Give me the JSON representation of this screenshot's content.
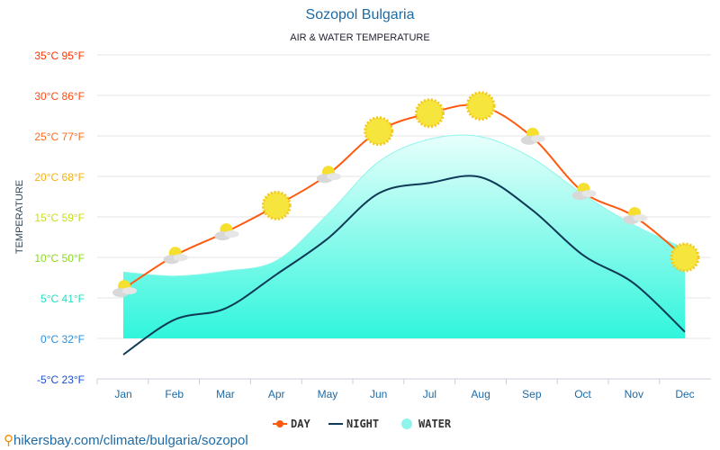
{
  "footer": "hikersbay.com/climate/bulgaria/sozopol",
  "chart_data": {
    "type": "line",
    "title": "Sozopol Bulgaria",
    "subtitle": "AIR & WATER TEMPERATURE",
    "ylabel": "TEMPERATURE",
    "ylim": [
      -5,
      35
    ],
    "grid": true,
    "legend_position": "bottom",
    "categories": [
      "Jan",
      "Feb",
      "Mar",
      "Apr",
      "May",
      "Jun",
      "Jul",
      "Aug",
      "Sep",
      "Oct",
      "Nov",
      "Dec"
    ],
    "yticks": [
      {
        "v": 35,
        "label": "35°C 95°F",
        "color": "#ff3300"
      },
      {
        "v": 30,
        "label": "30°C 86°F",
        "color": "#ff4a10"
      },
      {
        "v": 25,
        "label": "25°C 77°F",
        "color": "#ff6a1a"
      },
      {
        "v": 20,
        "label": "20°C 68°F",
        "color": "#f5b010"
      },
      {
        "v": 15,
        "label": "15°C 59°F",
        "color": "#c8dc20"
      },
      {
        "v": 10,
        "label": "10°C 50°F",
        "color": "#8ad820"
      },
      {
        "v": 5,
        "label": "5°C 41°F",
        "color": "#20e0c0"
      },
      {
        "v": 0,
        "label": "0°C 32°F",
        "color": "#2a90e0"
      },
      {
        "v": -5,
        "label": "-5°C 23°F",
        "color": "#1a50d0"
      }
    ],
    "series": [
      {
        "name": "DAY",
        "color": "#ff5a10",
        "values": [
          6.1,
          10.2,
          13.1,
          16.4,
          20.2,
          25.6,
          27.8,
          28.7,
          24.9,
          18.1,
          15.1,
          10.0
        ],
        "icons": [
          "partly-cloudy",
          "partly-cloudy",
          "partly-cloudy",
          "sunny",
          "partly-cloudy",
          "sunny",
          "sunny",
          "sunny",
          "partly-cloudy",
          "partly-cloudy",
          "partly-cloudy",
          "sunny"
        ]
      },
      {
        "name": "NIGHT",
        "color": "#0d3a55",
        "values": [
          -2.0,
          2.3,
          3.7,
          7.9,
          12.3,
          17.9,
          19.2,
          19.9,
          15.9,
          10.3,
          6.8,
          0.8
        ]
      },
      {
        "name": "WATER",
        "color": "#8ff5ea",
        "values": [
          8.2,
          7.7,
          8.3,
          9.6,
          15.3,
          21.8,
          24.6,
          24.9,
          22.3,
          17.8,
          14.0,
          11.1
        ]
      }
    ]
  }
}
